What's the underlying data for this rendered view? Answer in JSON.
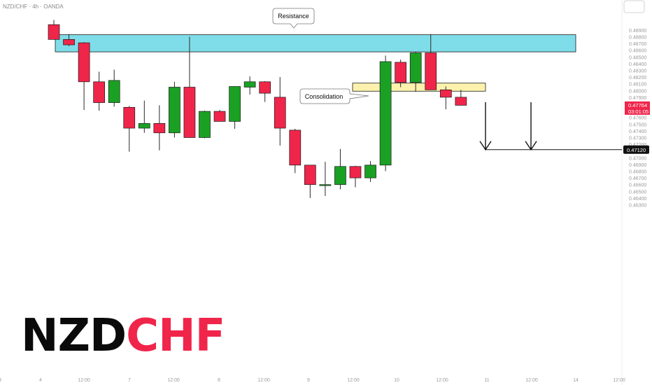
{
  "symbol_label": "NZD/CHF · 4h · OANDA",
  "currency": "CHF",
  "logo": {
    "part1": "NZD",
    "part2": "CHF"
  },
  "chart_data": {
    "type": "candlestick",
    "title": "",
    "ylim": [
      0.4635,
      0.4905
    ],
    "y_ticks": [
      "0.48900",
      "0.48800",
      "0.48700",
      "0.48600",
      "0.48500",
      "0.48400",
      "0.48300",
      "0.48200",
      "0.48100",
      "0.48000",
      "0.47900",
      "0.47800",
      "0.47700",
      "0.47600",
      "0.47500",
      "0.47400",
      "0.47300",
      "0.47200",
      "0.47100",
      "0.47000",
      "0.46900",
      "0.46800",
      "0.46700",
      "0.46600",
      "0.46500",
      "0.46400",
      "0.46300"
    ],
    "x_ticks": [
      "3",
      "4",
      "12:00",
      "7",
      "12:00",
      "8",
      "12:00",
      "9",
      "12:00",
      "10",
      "12:00",
      "11",
      "12:00",
      "14",
      "12:00"
    ],
    "candles": [
      {
        "o": 0.4898,
        "h": 0.4905,
        "l": 0.4876,
        "c": 0.4876
      },
      {
        "o": 0.4876,
        "h": 0.4884,
        "l": 0.4866,
        "c": 0.4868
      },
      {
        "o": 0.4871,
        "h": 0.4872,
        "l": 0.4771,
        "c": 0.4813
      },
      {
        "o": 0.4813,
        "h": 0.4828,
        "l": 0.477,
        "c": 0.4782
      },
      {
        "o": 0.4782,
        "h": 0.4831,
        "l": 0.4776,
        "c": 0.4815
      },
      {
        "o": 0.4775,
        "h": 0.4777,
        "l": 0.4709,
        "c": 0.4744
      },
      {
        "o": 0.4744,
        "h": 0.4785,
        "l": 0.4737,
        "c": 0.4751
      },
      {
        "o": 0.4751,
        "h": 0.4778,
        "l": 0.4711,
        "c": 0.4737
      },
      {
        "o": 0.4737,
        "h": 0.4813,
        "l": 0.473,
        "c": 0.4805
      },
      {
        "o": 0.4805,
        "h": 0.488,
        "l": 0.473,
        "c": 0.473
      },
      {
        "o": 0.473,
        "h": 0.477,
        "l": 0.4729,
        "c": 0.4769
      },
      {
        "o": 0.4769,
        "h": 0.4771,
        "l": 0.4754,
        "c": 0.4754
      },
      {
        "o": 0.4754,
        "h": 0.4806,
        "l": 0.4743,
        "c": 0.4806
      },
      {
        "o": 0.4805,
        "h": 0.4821,
        "l": 0.4794,
        "c": 0.4813
      },
      {
        "o": 0.4813,
        "h": 0.4814,
        "l": 0.4783,
        "c": 0.4796
      },
      {
        "o": 0.479,
        "h": 0.482,
        "l": 0.4718,
        "c": 0.4744
      },
      {
        "o": 0.4741,
        "h": 0.4743,
        "l": 0.4677,
        "c": 0.4689
      },
      {
        "o": 0.4689,
        "h": 0.4689,
        "l": 0.464,
        "c": 0.466
      },
      {
        "o": 0.466,
        "h": 0.4694,
        "l": 0.4643,
        "c": 0.466
      },
      {
        "o": 0.466,
        "h": 0.4713,
        "l": 0.4653,
        "c": 0.4687
      },
      {
        "o": 0.4687,
        "h": 0.4688,
        "l": 0.4656,
        "c": 0.467
      },
      {
        "o": 0.467,
        "h": 0.4695,
        "l": 0.4664,
        "c": 0.4689
      },
      {
        "o": 0.4689,
        "h": 0.4852,
        "l": 0.468,
        "c": 0.4843
      },
      {
        "o": 0.4842,
        "h": 0.4846,
        "l": 0.4805,
        "c": 0.4812
      },
      {
        "o": 0.4812,
        "h": 0.4857,
        "l": 0.4798,
        "c": 0.4856
      },
      {
        "o": 0.4856,
        "h": 0.4884,
        "l": 0.4801,
        "c": 0.4801
      },
      {
        "o": 0.4801,
        "h": 0.4806,
        "l": 0.4772,
        "c": 0.479
      },
      {
        "o": 0.479,
        "h": 0.4801,
        "l": 0.4778,
        "c": 0.4778
      }
    ],
    "resistance_zone": {
      "top": 0.4883,
      "bottom": 0.48575
    },
    "consolidation_zone": {
      "top": 0.4811,
      "bottom": 0.4799
    },
    "target": 0.4712,
    "current_price": "0.47764",
    "countdown": "03:01:05",
    "target_label": "0.47120",
    "annotations": {
      "resistance": "Resistance",
      "consolidation": "Consolidation"
    },
    "colors": {
      "up": "#1aa124",
      "down": "#f0254a",
      "resistance_fill": "#7fdde9",
      "consolidation_fill": "#fdf2ad",
      "text": "#0a0a0a"
    }
  }
}
